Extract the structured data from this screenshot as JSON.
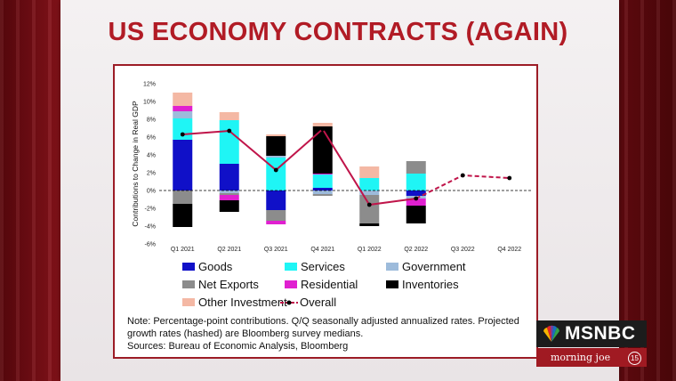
{
  "title": "US ECONOMY CONTRACTS (AGAIN)",
  "chart_data": {
    "type": "bar",
    "stacked": true,
    "ylabel": "Contributions to Change in Real GDP",
    "ylim": [
      -6,
      12
    ],
    "yticks": [
      "-6%",
      "-4%",
      "-2%",
      "0%",
      "2%",
      "4%",
      "6%",
      "8%",
      "10%",
      "12%"
    ],
    "ytick_values": [
      -6,
      -4,
      -2,
      0,
      2,
      4,
      6,
      8,
      10,
      12
    ],
    "categories": [
      "Q1 2021",
      "Q2 2021",
      "Q3 2021",
      "Q4 2021",
      "Q1 2022",
      "Q2 2022",
      "Q3 2022",
      "Q4 2022"
    ],
    "series": [
      {
        "name": "Goods",
        "color": "#1010c8",
        "values": [
          5.7,
          3.0,
          -2.2,
          0.3,
          0.0,
          -0.6,
          null,
          null
        ]
      },
      {
        "name": "Services",
        "color": "#1ff5f5",
        "values": [
          2.4,
          4.9,
          3.7,
          1.5,
          1.4,
          1.9,
          null,
          null
        ]
      },
      {
        "name": "Government",
        "color": "#9dbbdb",
        "values": [
          0.8,
          -0.3,
          0.2,
          -0.4,
          -0.5,
          -0.3,
          null,
          null
        ]
      },
      {
        "name": "Net Exports",
        "color": "#8c8c8c",
        "values": [
          -1.5,
          -0.2,
          -1.2,
          -0.2,
          -3.2,
          1.4,
          null,
          null
        ]
      },
      {
        "name": "Residential",
        "color": "#e020d0",
        "values": [
          0.6,
          -0.6,
          -0.4,
          0.1,
          0.0,
          -0.8,
          null,
          null
        ]
      },
      {
        "name": "Inventories",
        "color": "#000000",
        "values": [
          -2.6,
          -1.3,
          2.2,
          5.3,
          -0.3,
          -2.0,
          null,
          null
        ]
      },
      {
        "name": "Other Investment",
        "color": "#f4b8a4",
        "values": [
          1.5,
          0.9,
          0.2,
          0.4,
          1.3,
          0.0,
          null,
          null
        ]
      }
    ],
    "overall": {
      "name": "Overall",
      "color": "#c0154a",
      "values": [
        6.3,
        6.7,
        2.3,
        6.9,
        -1.6,
        -0.9,
        1.7,
        1.4
      ],
      "projected_from_index": 5
    },
    "legend": "bottom",
    "grid": false
  },
  "note": {
    "line1": "Note: Percentage-point contributions. Q/Q seasonally adjusted annualized rates. Projected",
    "line2": "growth rates (hashed) are Bloomberg survey medians.",
    "line3": "Sources: Bureau of Economic Analysis, Bloomberg"
  },
  "logo": {
    "network": "MSNBC",
    "show": "morning joe",
    "badge": "15"
  }
}
